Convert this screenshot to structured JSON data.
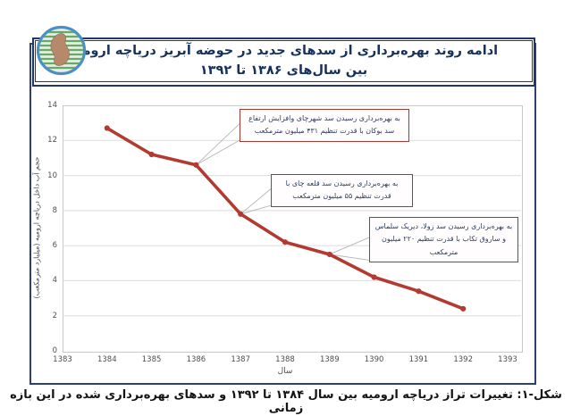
{
  "header": {
    "title_line1": "ادامه روند بهره‌برداری از سدهای جدید در حوضه آبریز دریاچه ارومیه",
    "title_line2": "بین سال‌های ۱۳۸۶ تا ۱۳۹۲",
    "logo_name": "lake-urmia-logo"
  },
  "caption": "شکل-۱: تغییرات تراز دریاچه ارومیه بین سال ۱۳۸۴ تا ۱۳۹۲ و سدهای بهره‌برداری شده در این بازه زمانی",
  "colors": {
    "frame_border": "#2e4070",
    "banner_border": "#23366b",
    "title_text": "#16325c",
    "line": "#b23a30",
    "annotation_border": "#a23a34",
    "annotation_text": "#2c3e5c",
    "gridline": "#dcdcdc",
    "tick_text": "#4d4d4d"
  },
  "chart_data": {
    "type": "line",
    "x": [
      1384,
      1385,
      1386,
      1387,
      1388,
      1389,
      1390,
      1391,
      1392
    ],
    "values": [
      12.7,
      11.2,
      10.6,
      7.8,
      6.2,
      5.5,
      4.2,
      3.4,
      2.4
    ],
    "xlim": [
      1383,
      1393
    ],
    "ylim": [
      0,
      14
    ],
    "x_ticks": [
      1383,
      1384,
      1385,
      1386,
      1387,
      1388,
      1389,
      1390,
      1391,
      1392,
      1393
    ],
    "y_ticks": [
      0,
      2,
      4,
      6,
      8,
      10,
      12,
      14
    ],
    "xlabel": "سال",
    "ylabel": "حجم آب داخل دریاچه ارومیه (میلیارد مترمکعب)",
    "title": "ادامه روند بهره‌برداری از سدهای جدید در حوضه آبریز دریاچه ارومیه بین سال‌های ۱۳۸۶ تا ۱۳۹۲",
    "grid": true,
    "legend": "none",
    "line_color": "#b23a30",
    "annotations": [
      {
        "text": "به بهره‌برداری رسیدن سد شهرچای وافزایش ارتفاع سد بوکان با قدرت تنظیم ۴۳۱ میلیون مترمکعب",
        "target_year": 1386
      },
      {
        "text": "به بهره‌برداری رسیدن سد قلعه چای با قدرت تنظیم ۵۵ میلیون مترمکعب",
        "target_year": 1387
      },
      {
        "text": "به بهره‌برداری رسیدن سد زولا، دیریک سلماس و ساروق تکاب با قدرت تنظیم ۲۲۰ میلیون مترمکعب",
        "target_year": 1389
      }
    ]
  }
}
